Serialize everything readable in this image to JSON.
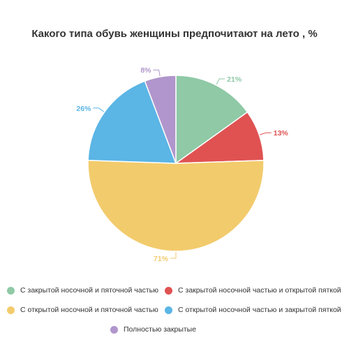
{
  "chart_data": {
    "type": "pie",
    "title": "Какого типа обувь женщины предпочитают на лето , %",
    "slices": [
      {
        "label": "С закрытой носочной и пяточной частью",
        "value": 21,
        "display": "21%",
        "color": "#8fc9a6"
      },
      {
        "label": "С закрытой носочной частью и открытой пяткой",
        "value": 13,
        "display": "13%",
        "color": "#e05252"
      },
      {
        "label": "С открытой носочной и пяточной частью",
        "value": 71,
        "display": "71%",
        "color": "#f2cb6c"
      },
      {
        "label": "С открытой носочной частью и закрытой пяткой",
        "value": 26,
        "display": "26%",
        "color": "#5bb5e5"
      },
      {
        "label": "Полностью закрытые",
        "value": 8,
        "display": "8%",
        "color": "#b096cc"
      }
    ],
    "legend_position": "bottom"
  }
}
